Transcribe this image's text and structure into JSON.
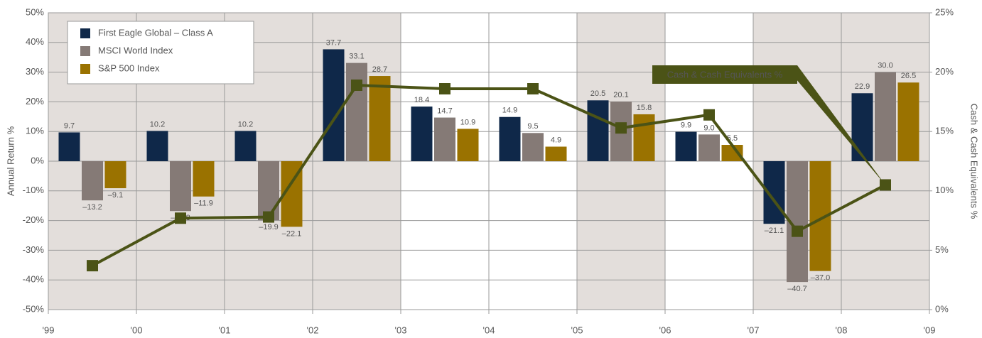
{
  "chart_data": {
    "type": "bar",
    "ylabel": "Annual Return %",
    "y2label": "Cash & Cash Equivalents %",
    "xlim": [
      1999,
      2009
    ],
    "xticks": [
      {
        "value": 1999,
        "label": "'99"
      },
      {
        "value": 2000,
        "label": "'00"
      },
      {
        "value": 2001,
        "label": "'01"
      },
      {
        "value": 2002,
        "label": "'02"
      },
      {
        "value": 2003,
        "label": "'03"
      },
      {
        "value": 2004,
        "label": "'04"
      },
      {
        "value": 2005,
        "label": "'05"
      },
      {
        "value": 2006,
        "label": "'06"
      },
      {
        "value": 2007,
        "label": "'07"
      },
      {
        "value": 2008,
        "label": "'08"
      },
      {
        "value": 2009,
        "label": "'09"
      }
    ],
    "x": [
      1999.5,
      2000.5,
      2001.5,
      2002.5,
      2003.5,
      2004.5,
      2005.5,
      2006.5,
      2007.5,
      2008.5
    ],
    "ylim": [
      -50,
      50
    ],
    "yticks": [
      {
        "value": 50,
        "label": "50%"
      },
      {
        "value": 40,
        "label": "40%"
      },
      {
        "value": 30,
        "label": "30%"
      },
      {
        "value": 20,
        "label": "20%"
      },
      {
        "value": 10,
        "label": "10%"
      },
      {
        "value": 0,
        "label": "0%"
      },
      {
        "value": -10,
        "label": "-10%"
      },
      {
        "value": -20,
        "label": "-20%"
      },
      {
        "value": -30,
        "label": "-30%"
      },
      {
        "value": -40,
        "label": "-40%"
      },
      {
        "value": -50,
        "label": "-50%"
      }
    ],
    "y2lim": [
      0,
      25
    ],
    "y2ticks": [
      {
        "value": 25,
        "label": "25%"
      },
      {
        "value": 20,
        "label": "20%"
      },
      {
        "value": 15,
        "label": "15%"
      },
      {
        "value": 10,
        "label": "10%"
      },
      {
        "value": 5,
        "label": "5%"
      },
      {
        "value": 0,
        "label": "0%"
      }
    ],
    "grid": true,
    "legend": "top-left",
    "series": [
      {
        "name": "First Eagle Global – Class A",
        "color": "#0f2849",
        "label_color": "#0f2849",
        "values": [
          9.7,
          10.2,
          10.2,
          37.7,
          18.4,
          14.9,
          20.5,
          9.9,
          -21.1,
          22.9
        ],
        "value_labels": [
          "9.7",
          "10.2",
          "10.2",
          "37.7",
          "18.4",
          "14.9",
          "20.5",
          "9.9",
          "–21.1",
          "22.9"
        ]
      },
      {
        "name": "MSCI World Index",
        "color": "#857a76",
        "label_color": "#777",
        "values": [
          -13.2,
          -16.8,
          -19.9,
          33.1,
          14.7,
          9.5,
          20.1,
          9.0,
          -40.7,
          30.0
        ],
        "value_labels": [
          "–13.2",
          "–16.8",
          "–19.9",
          "33.1",
          "14.7",
          "9.5",
          "20.1",
          "9.0",
          "–40.7",
          "30.0"
        ]
      },
      {
        "name": "S&P 500 Index",
        "color": "#9a7200",
        "label_color": "#a07800",
        "values": [
          -9.1,
          -11.9,
          -22.1,
          28.7,
          10.9,
          4.9,
          15.8,
          5.5,
          -37.0,
          26.5
        ],
        "value_labels": [
          "–9.1",
          "–11.9",
          "–22.1",
          "28.7",
          "10.9",
          "4.9",
          "15.8",
          "5.5",
          "–37.0",
          "26.5"
        ]
      },
      {
        "name": "Cash & Cash Equivalents %",
        "type": "line",
        "axis": "y2",
        "color": "#4b5316",
        "values": [
          3.7,
          7.7,
          7.8,
          18.9,
          18.6,
          18.6,
          15.3,
          16.4,
          6.6,
          10.5
        ]
      }
    ]
  }
}
